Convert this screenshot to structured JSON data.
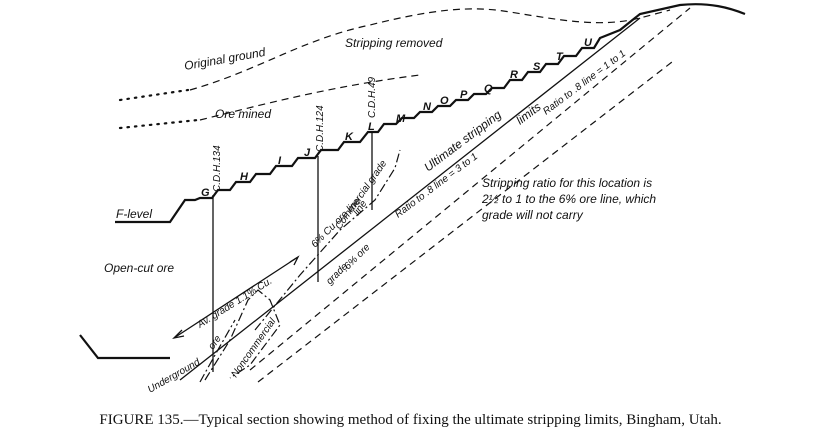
{
  "figure": {
    "areas": {
      "original_ground": "Original ground",
      "stripping_removed": "Stripping removed",
      "ore_mined": "Ore mined",
      "f_level": "F-level",
      "open_cut_ore": "Open-cut ore",
      "underground": "Underground",
      "ore": "ore",
      "noncommercial": "Noncommercial"
    },
    "drill_holes": [
      "C.D.H.134",
      "C.D.H.124",
      "C.D.H.49"
    ],
    "bench_letters": [
      "G",
      "H",
      "I",
      "J",
      "K",
      "L",
      "M",
      "N",
      "O",
      "P",
      "Q",
      "R",
      "S",
      "T",
      "U"
    ],
    "line_labels": {
      "ore_line_6": "6% Cu ore line",
      "commercial_grade_line_1": "Commercial grade",
      "commercial_grade_line_2": "line",
      "av_grade": "Av. grade 1.1% Cu.",
      "grade": "grade",
      "six_pct_ore": ".6% ore",
      "ultimate_limits_1": "Ultimate stripping",
      "ultimate_limits_2": "limits",
      "ratio_3to1": "Ratio to .8 line = 3 to 1",
      "ratio_1to1": "Ratio to .8 line = 1 to 1"
    },
    "note": [
      "Stripping ratio for this location is",
      "2½ to 1 to the 6% ore line, which",
      "grade will not carry"
    ]
  },
  "caption": "FIGURE 135.—Typical section showing method of fixing the ultimate stripping limits, Bingham, Utah."
}
